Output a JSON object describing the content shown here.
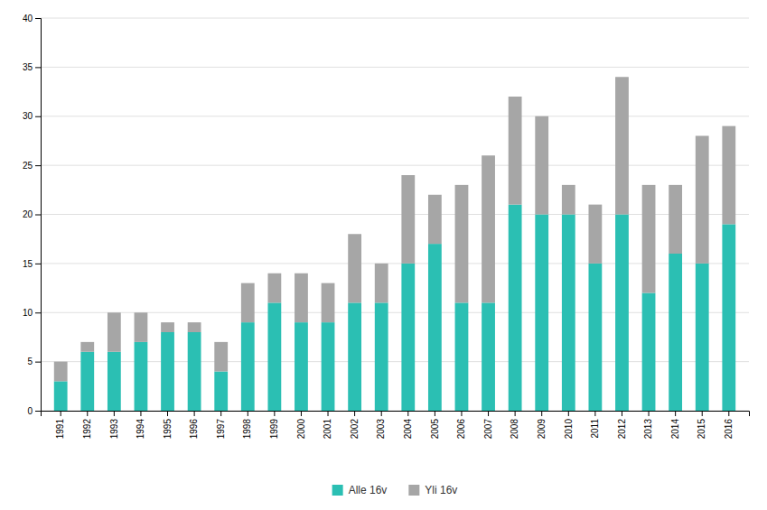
{
  "chart_data": {
    "type": "bar",
    "stacked": true,
    "categories": [
      "1991",
      "1992",
      "1993",
      "1994",
      "1995",
      "1996",
      "1997",
      "1998",
      "1999",
      "2000",
      "2001",
      "2002",
      "2003",
      "2004",
      "2005",
      "2006",
      "2007",
      "2008",
      "2009",
      "2010",
      "2011",
      "2012",
      "2013",
      "2014",
      "2015",
      "2016"
    ],
    "series": [
      {
        "name": "Alle 16v",
        "color": "#2bbfb3",
        "values": [
          3,
          6,
          6,
          7,
          8,
          8,
          4,
          9,
          11,
          9,
          9,
          11,
          11,
          15,
          17,
          11,
          11,
          21,
          20,
          20,
          15,
          20,
          12,
          16,
          15,
          19
        ]
      },
      {
        "name": "Yli 16v",
        "color": "#a6a6a6",
        "values": [
          2,
          1,
          4,
          3,
          1,
          1,
          3,
          4,
          3,
          5,
          4,
          7,
          4,
          9,
          5,
          12,
          15,
          11,
          10,
          3,
          6,
          14,
          11,
          7,
          13,
          10
        ]
      }
    ],
    "ylim": [
      0,
      40
    ],
    "yticks": [
      0,
      5,
      10,
      15,
      20,
      25,
      30,
      35,
      40
    ],
    "grid": true,
    "legend": "bottom"
  }
}
